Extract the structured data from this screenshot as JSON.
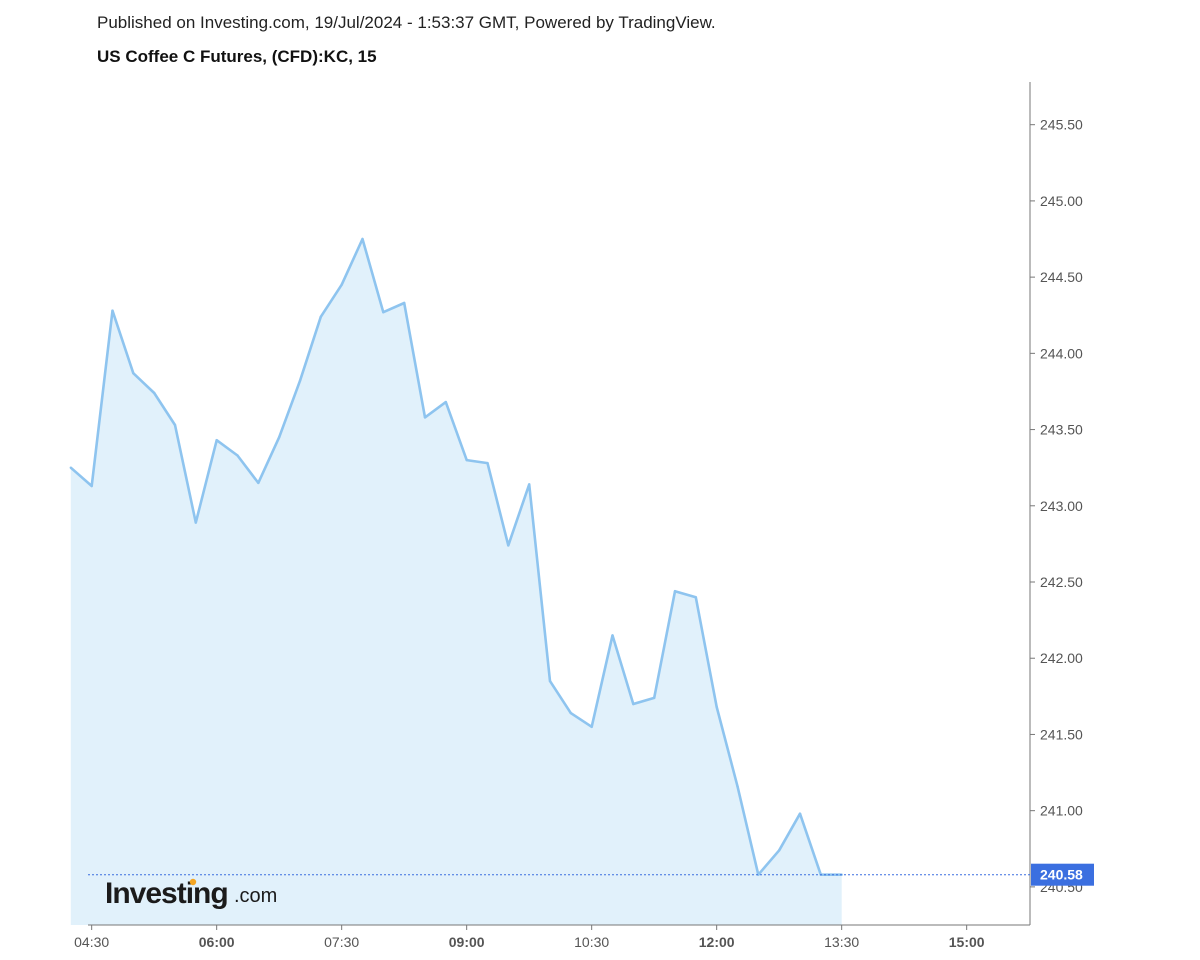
{
  "header": {
    "published": "Published on Investing.com, 19/Jul/2024 - 1:53:37 GMT, Powered by TradingView.",
    "title": "US Coffee C Futures, (CFD):KC, 15"
  },
  "logo": {
    "main": "Investing",
    "suffix": ".com"
  },
  "colors": {
    "line": "#8ec4ef",
    "fill": "#e1f1fb",
    "axis": "#777777",
    "last_price": "#3b6fe0"
  },
  "chart_data": {
    "type": "area",
    "x_unit": "time (15-minute bars)",
    "x": [
      "04:15",
      "04:30",
      "04:45",
      "05:00",
      "05:15",
      "05:30",
      "05:45",
      "06:00",
      "06:15",
      "06:30",
      "06:45",
      "07:00",
      "07:15",
      "07:30",
      "07:45",
      "08:00",
      "08:15",
      "08:30",
      "08:45",
      "09:00",
      "09:15",
      "09:30",
      "09:45",
      "10:00",
      "10:15",
      "10:30",
      "10:45",
      "11:00",
      "11:15",
      "11:30",
      "11:45",
      "12:00",
      "12:15",
      "12:30",
      "12:45",
      "13:00",
      "13:15",
      "13:30"
    ],
    "values": [
      243.25,
      243.13,
      244.28,
      243.87,
      243.74,
      243.53,
      242.89,
      243.43,
      243.33,
      243.15,
      243.45,
      243.82,
      244.24,
      244.45,
      244.75,
      244.27,
      244.33,
      243.58,
      243.68,
      243.3,
      243.28,
      242.74,
      243.14,
      241.85,
      241.64,
      241.55,
      242.15,
      241.7,
      241.74,
      242.44,
      242.4,
      241.68,
      241.16,
      240.58,
      240.74,
      240.98,
      240.58,
      240.58
    ],
    "x_ticks": [
      "04:30",
      "06:00",
      "07:30",
      "09:00",
      "10:30",
      "12:00",
      "13:30",
      "15:00"
    ],
    "x_tick_values": [
      "04:30",
      "06:00",
      "07:30",
      "09:00",
      "10:30",
      "12:00",
      "13:30",
      "15:00"
    ],
    "bold_x_ticks": [
      "06:00",
      "09:00",
      "12:00",
      "15:00"
    ],
    "x_range": [
      "04:00",
      "16:00"
    ],
    "y_ticks": [
      "245.50",
      "245.00",
      "244.50",
      "244.00",
      "243.50",
      "243.00",
      "242.50",
      "242.00",
      "241.50",
      "241.00",
      "240.50"
    ],
    "ylim": [
      240.25,
      245.78
    ],
    "last_price": "240.58",
    "last_price_value": 240.58,
    "grid": false,
    "y_axis_side": "right"
  }
}
